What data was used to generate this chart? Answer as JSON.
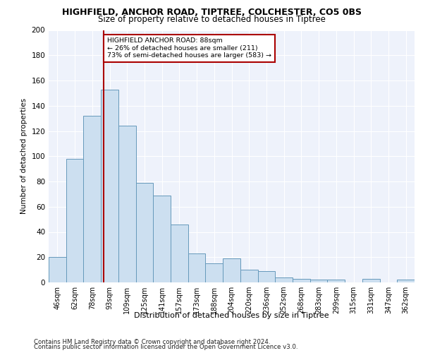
{
  "title1": "HIGHFIELD, ANCHOR ROAD, TIPTREE, COLCHESTER, CO5 0BS",
  "title2": "Size of property relative to detached houses in Tiptree",
  "xlabel": "Distribution of detached houses by size in Tiptree",
  "ylabel": "Number of detached properties",
  "categories": [
    "46sqm",
    "62sqm",
    "78sqm",
    "93sqm",
    "109sqm",
    "125sqm",
    "141sqm",
    "157sqm",
    "173sqm",
    "188sqm",
    "204sqm",
    "220sqm",
    "236sqm",
    "252sqm",
    "268sqm",
    "283sqm",
    "299sqm",
    "315sqm",
    "331sqm",
    "347sqm",
    "362sqm"
  ],
  "values": [
    20,
    98,
    132,
    153,
    124,
    79,
    69,
    46,
    23,
    15,
    19,
    10,
    9,
    4,
    3,
    2,
    2,
    0,
    3,
    0,
    2
  ],
  "bar_color": "#ccdff0",
  "bar_edge_color": "#6699bb",
  "annotation_text": "HIGHFIELD ANCHOR ROAD: 88sqm\n← 26% of detached houses are smaller (211)\n73% of semi-detached houses are larger (583) →",
  "annotation_box_color": "white",
  "annotation_box_edge_color": "#aa0000",
  "vline_color": "#aa0000",
  "footer1": "Contains HM Land Registry data © Crown copyright and database right 2024.",
  "footer2": "Contains public sector information licensed under the Open Government Licence v3.0.",
  "bg_color": "#eef2fb",
  "ylim": [
    0,
    200
  ],
  "yticks": [
    0,
    20,
    40,
    60,
    80,
    100,
    120,
    140,
    160,
    180,
    200
  ]
}
